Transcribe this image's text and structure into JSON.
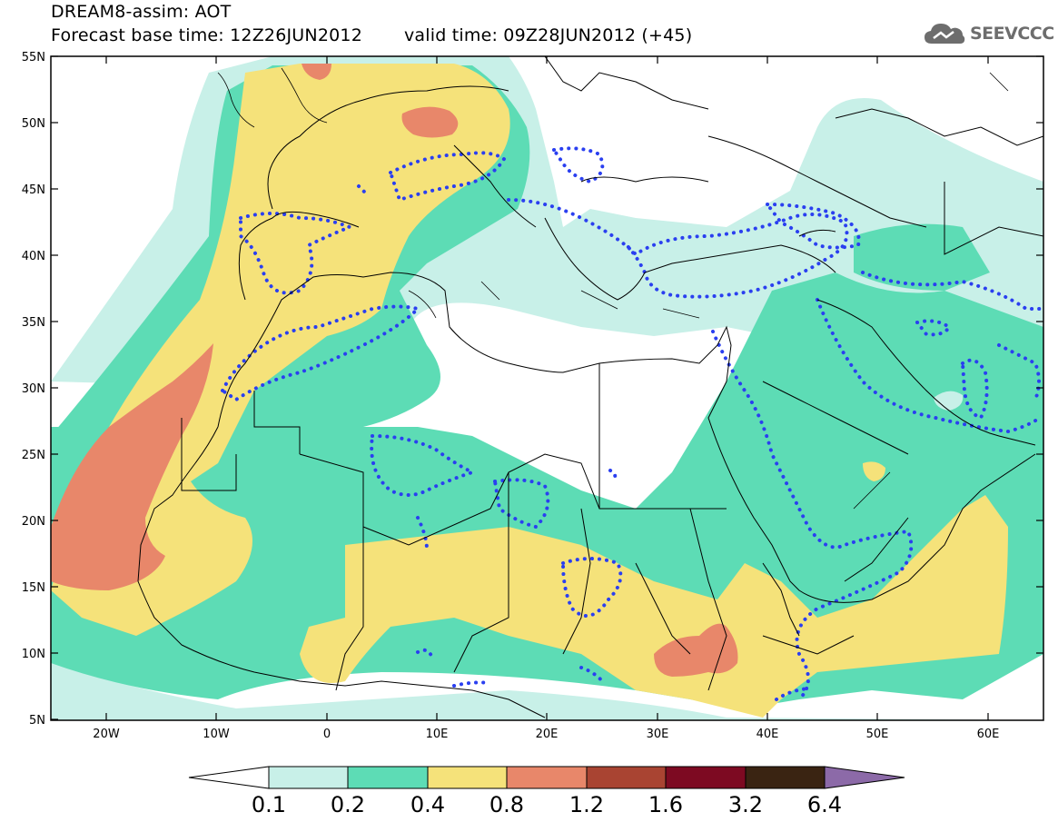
{
  "header": {
    "title_line1": "DREAM8-assim: AOT",
    "title_line2": "Forecast base time: 12Z26JUN2012",
    "valid_time": "valid time: 09Z28JUN2012 (+45)"
  },
  "logo": {
    "text": "SEEVCCC",
    "icon": "cloud-icon"
  },
  "map": {
    "lat_labels": [
      "55N",
      "50N",
      "45N",
      "40N",
      "35N",
      "30N",
      "25N",
      "20N",
      "15N",
      "10N",
      "5N"
    ],
    "lon_labels": [
      "20W",
      "10W",
      "0",
      "10E",
      "20E",
      "30E",
      "40E",
      "50E",
      "60E"
    ],
    "lat_range": [
      5,
      55
    ],
    "lon_range": [
      -25,
      65
    ],
    "dotted_contour_color": "#2a3ff0",
    "coastline_color": "#000000"
  },
  "colorbar": {
    "labels": [
      "0.1",
      "0.2",
      "0.4",
      "0.8",
      "1.2",
      "1.6",
      "3.2",
      "6.4"
    ],
    "colors": [
      "#ffffff",
      "#c8f0e8",
      "#5ddcb5",
      "#f5e27a",
      "#e8876a",
      "#a94432",
      "#7d0a22",
      "#3a2412",
      "#8c6aa8"
    ]
  }
}
